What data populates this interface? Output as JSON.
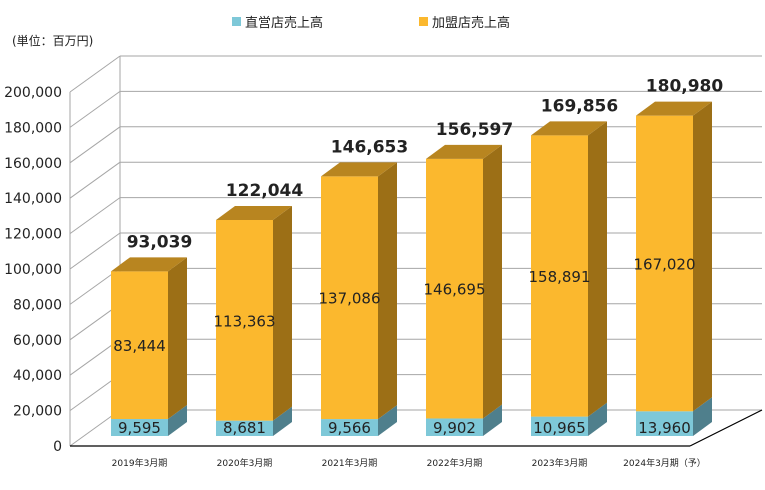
{
  "unit_label": "(単位：百万円)",
  "colors": {
    "direct": "#7ec8d8",
    "franchise": "#fbb82e",
    "direct_side": "#4f7f8c",
    "franchise_side": "#9c6f16",
    "franchise_top": "#b88520",
    "direct_top": "#5e98a8",
    "grid": "#a6a6a6",
    "text": "#222222"
  },
  "legend": [
    {
      "name": "直営店売上高",
      "color_key": "direct"
    },
    {
      "name": "加盟店売上高",
      "color_key": "franchise"
    }
  ],
  "chart_data": {
    "type": "bar",
    "stacked": true,
    "categories": [
      "2019年3月期",
      "2020年3月期",
      "2021年3月期",
      "2022年3月期",
      "2023年3月期",
      "2024年3月期（予）"
    ],
    "series": [
      {
        "name": "直営店売上高",
        "values": [
          9595,
          8681,
          9566,
          9902,
          10965,
          13960
        ]
      },
      {
        "name": "加盟店売上高",
        "values": [
          83444,
          113363,
          137086,
          146695,
          158891,
          167020
        ]
      }
    ],
    "totals": [
      93039,
      122044,
      146653,
      156597,
      169856,
      180980
    ],
    "value_labels": {
      "direct": [
        "9,595",
        "8,681",
        "9,566",
        "9,902",
        "10,965",
        "13,960"
      ],
      "franchise": [
        "83,444",
        "113,363",
        "137,086",
        "146,695",
        "158,891",
        "167,020"
      ],
      "totals": [
        "93,039",
        "122,044",
        "146,653",
        "156,597",
        "169,856",
        "180,980"
      ]
    },
    "yticks": [
      0,
      20000,
      40000,
      60000,
      80000,
      100000,
      120000,
      140000,
      160000,
      180000,
      200000
    ],
    "ytick_labels": [
      "0",
      "20,000",
      "40,000",
      "60,000",
      "80,000",
      "100,000",
      "120,000",
      "140,000",
      "160,000",
      "180,000",
      "200,000"
    ],
    "ylim": [
      0,
      200000
    ],
    "grid": true,
    "legend_position": "top-center",
    "xlabel": "",
    "ylabel": ""
  }
}
